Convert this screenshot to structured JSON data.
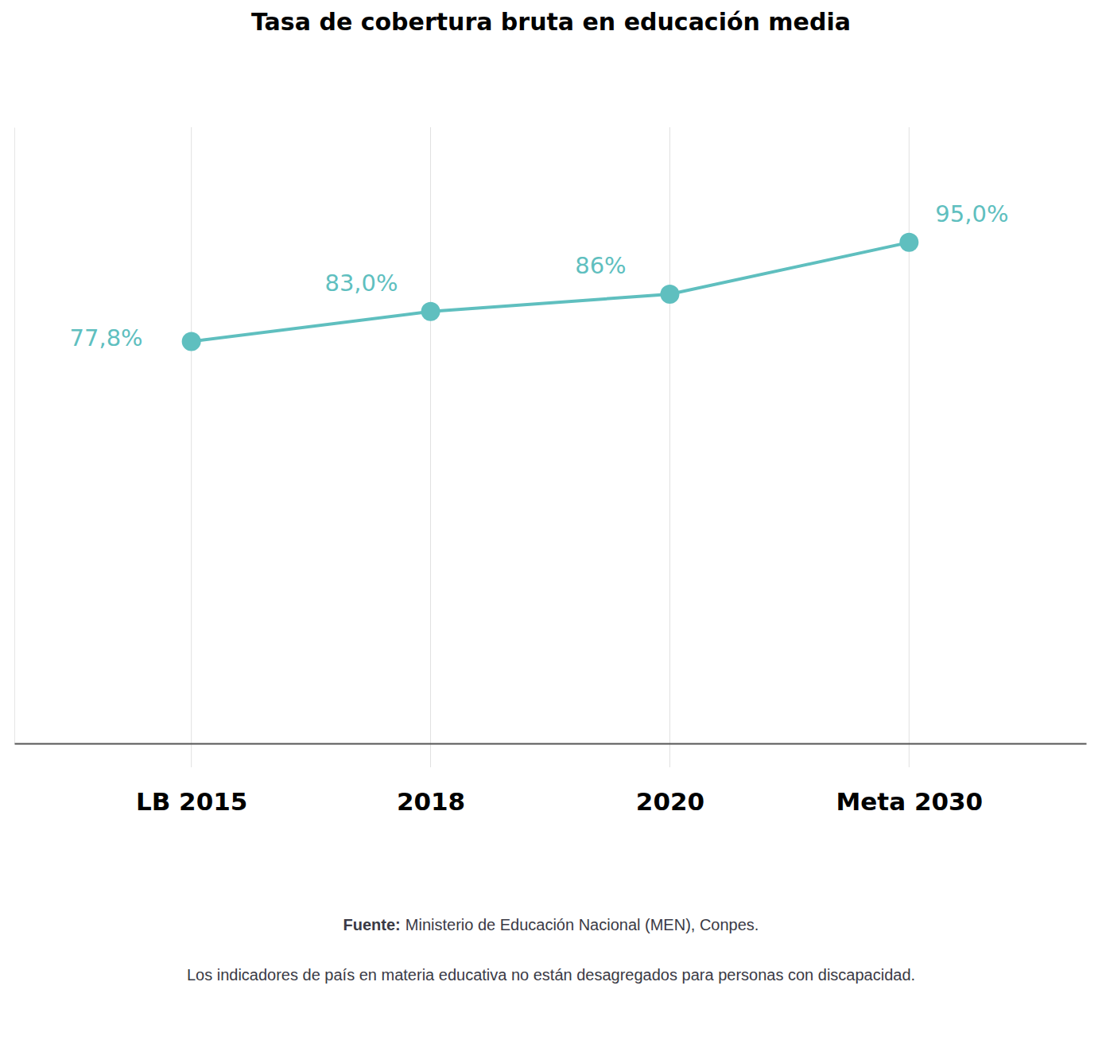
{
  "chart_data": {
    "type": "line",
    "title": "Tasa de cobertura bruta en educación media",
    "categories": [
      "LB 2015",
      "2018",
      "2020",
      "Meta 2030"
    ],
    "values": [
      77.8,
      83.0,
      86,
      95.0
    ],
    "value_labels": [
      "77,8%",
      "83,0%",
      "86%",
      "95,0%"
    ],
    "data_labels": true,
    "color": "#5fbfbf",
    "marker": "circle",
    "ylim": [
      8,
      115
    ],
    "grid": true,
    "tick_labels": "x",
    "source_label": "Fuente:",
    "source": "Ministerio de Educación Nacional (MEN), Conpes.",
    "note": "Los indicadores de país en materia educativa no están desagregados para personas con discapacidad."
  }
}
